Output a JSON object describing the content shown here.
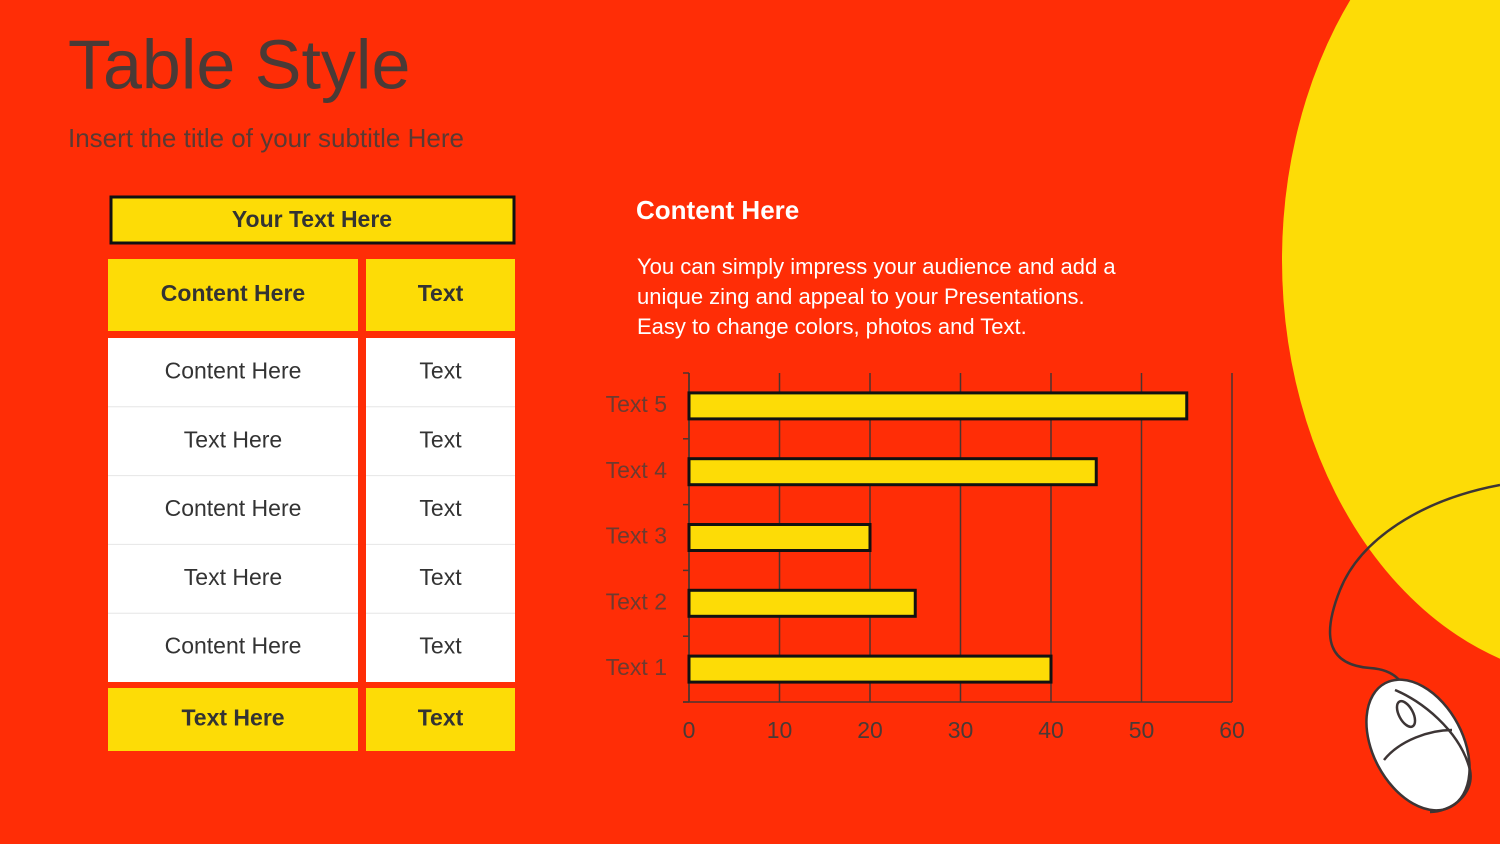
{
  "header": {
    "title": "Table Style",
    "subtitle": "Insert the title of your subtitle Here"
  },
  "table": {
    "caption": "Your Text Here",
    "header": [
      "Content  Here",
      "Text"
    ],
    "rows": [
      [
        "Content  Here",
        "Text"
      ],
      [
        "Text Here",
        "Text"
      ],
      [
        "Content  Here",
        "Text"
      ],
      [
        "Text Here",
        "Text"
      ],
      [
        "Content  Here",
        "Text"
      ]
    ],
    "footer": [
      "Text Here",
      "Text"
    ]
  },
  "content": {
    "heading": "Content  Here",
    "body": [
      "You can simply impress your audience and add a",
      "unique zing and appeal to your Presentations.",
      "Easy to change colors, photos and Text."
    ]
  },
  "chart_data": {
    "type": "bar",
    "orientation": "horizontal",
    "categories": [
      "Text 1",
      "Text 2",
      "Text 3",
      "Text 4",
      "Text 5"
    ],
    "values": [
      40,
      25,
      20,
      45,
      55
    ],
    "color": "#fddc06",
    "xlim": [
      0,
      60
    ],
    "xticks": [
      0,
      10,
      20,
      30,
      40,
      50,
      60
    ],
    "grid": true
  }
}
